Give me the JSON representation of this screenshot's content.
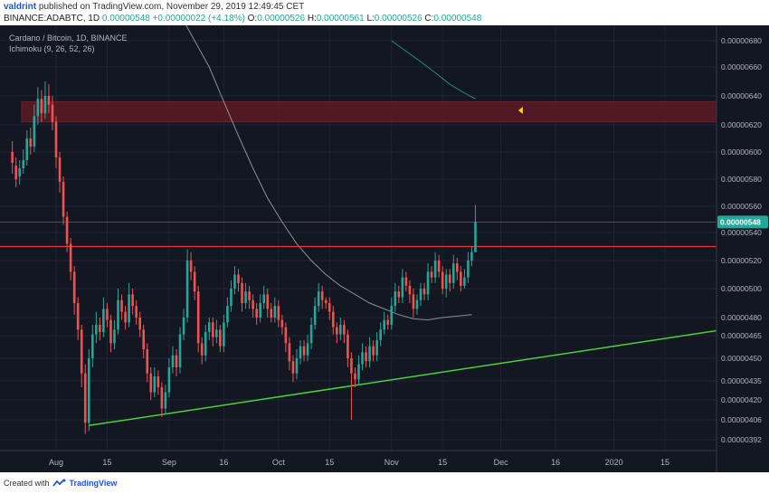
{
  "header": {
    "author": "valdrint",
    "published_text": "published on TradingView.com, November 29, 2019 12:49:45 CET",
    "symbol": "BINANCE:ADABTC, 1D",
    "last_price": "0.00000548",
    "change": "+0.00000022 (+4.18%)",
    "o_label": "O:",
    "o_value": "0.00000526",
    "h_label": "H:",
    "h_value": "0.00000561",
    "l_label": "L:",
    "l_value": "0.00000526",
    "c_label": "C:",
    "c_value": "0.00000548"
  },
  "legend": {
    "series": "Cardano / Bitcoin, 1D, BINANCE",
    "indicator": "Ichimoku (9, 26, 52, 26)"
  },
  "footer": {
    "created_with": "Created with",
    "brand": "TradingView"
  },
  "colors": {
    "background": "#131722",
    "up": "#26a69a",
    "down": "#ef5350",
    "support_line": "#4cd137",
    "resistance_line": "#e53935",
    "resistance_zone": "#5c1a22",
    "ma_curve": "#b2b5be",
    "teal_curve": "#1f8a82",
    "marker": "#ffd600"
  },
  "chart_data": {
    "type": "candlestick",
    "x_tick_labels": [
      "Aug",
      "15",
      "Sep",
      "16",
      "Oct",
      "15",
      "Nov",
      "15",
      "Dec",
      "16",
      "2020",
      "15"
    ],
    "y_tick_labels": [
      "0.00000680",
      "0.00000660",
      "0.00000640",
      "0.00000620",
      "0.00000600",
      "0.00000580",
      "0.00000560",
      "0.00000540",
      "0.00000520",
      "0.00000500",
      "0.00000480",
      "0.00000465",
      "0.00000450",
      "0.00000435",
      "0.00000420",
      "0.00000406",
      "0.00000392"
    ],
    "ticks": [
      680,
      660,
      640,
      620,
      600,
      580,
      560,
      540,
      520,
      500,
      480,
      465,
      450,
      435,
      420,
      406,
      392
    ],
    "price_unit_note": "values x 1e-8 BTC",
    "current_price_label": "0.00000548",
    "current_price": 548,
    "x_ticks": [
      {
        "day": 0,
        "label": "Aug"
      },
      {
        "day": 14,
        "label": "15"
      },
      {
        "day": 31,
        "label": "Sep"
      },
      {
        "day": 46,
        "label": "16"
      },
      {
        "day": 61,
        "label": "Oct"
      },
      {
        "day": 75,
        "label": "15"
      },
      {
        "day": 92,
        "label": "Nov"
      },
      {
        "day": 106,
        "label": "15"
      },
      {
        "day": 122,
        "label": "Dec"
      },
      {
        "day": 137,
        "label": "16"
      },
      {
        "day": 153,
        "label": "2020"
      },
      {
        "day": 167,
        "label": "15"
      }
    ],
    "candles": [
      [
        -12,
        600,
        592,
        608,
        584
      ],
      [
        -11,
        590,
        580,
        596,
        574
      ],
      [
        -10,
        582,
        588,
        594,
        576
      ],
      [
        -9,
        588,
        594,
        602,
        584
      ],
      [
        -8,
        594,
        610,
        616,
        590
      ],
      [
        -7,
        610,
        604,
        618,
        598
      ],
      [
        -6,
        604,
        626,
        634,
        600
      ],
      [
        -5,
        626,
        638,
        646,
        620
      ],
      [
        -4,
        638,
        628,
        644,
        622
      ],
      [
        -3,
        628,
        640,
        650,
        624
      ],
      [
        -2,
        640,
        634,
        648,
        628
      ],
      [
        -1,
        634,
        622,
        640,
        616
      ],
      [
        0,
        622,
        596,
        626,
        588
      ],
      [
        1,
        596,
        578,
        600,
        570
      ],
      [
        2,
        578,
        552,
        582,
        546
      ],
      [
        3,
        552,
        532,
        556,
        526
      ],
      [
        4,
        532,
        512,
        536,
        506
      ],
      [
        5,
        512,
        490,
        516,
        482
      ],
      [
        6,
        490,
        470,
        494,
        462
      ],
      [
        7,
        470,
        440,
        474,
        430
      ],
      [
        8,
        440,
        404,
        446,
        396
      ],
      [
        9,
        404,
        450,
        456,
        398
      ],
      [
        10,
        450,
        466,
        474,
        444
      ],
      [
        11,
        466,
        474,
        484,
        460
      ],
      [
        12,
        474,
        468,
        480,
        462
      ],
      [
        13,
        468,
        486,
        494,
        464
      ],
      [
        14,
        486,
        478,
        490,
        472
      ],
      [
        15,
        478,
        460,
        482,
        454
      ],
      [
        16,
        460,
        470,
        478,
        456
      ],
      [
        17,
        470,
        492,
        500,
        466
      ],
      [
        18,
        492,
        484,
        496,
        478
      ],
      [
        19,
        484,
        476,
        488,
        470
      ],
      [
        20,
        476,
        496,
        504,
        472
      ],
      [
        21,
        496,
        488,
        500,
        482
      ],
      [
        22,
        488,
        480,
        492,
        474
      ],
      [
        23,
        480,
        470,
        484,
        464
      ],
      [
        24,
        470,
        456,
        474,
        450
      ],
      [
        25,
        456,
        440,
        460,
        434
      ],
      [
        26,
        440,
        426,
        444,
        420
      ],
      [
        27,
        426,
        438,
        444,
        422
      ],
      [
        28,
        438,
        430,
        442,
        424
      ],
      [
        29,
        430,
        414,
        434,
        408
      ],
      [
        30,
        414,
        426,
        432,
        410
      ],
      [
        31,
        426,
        444,
        450,
        422
      ],
      [
        32,
        444,
        452,
        458,
        440
      ],
      [
        33,
        452,
        444,
        456,
        438
      ],
      [
        34,
        444,
        466,
        472,
        440
      ],
      [
        35,
        466,
        480,
        486,
        462
      ],
      [
        36,
        480,
        520,
        528,
        476
      ],
      [
        37,
        520,
        512,
        526,
        506
      ],
      [
        38,
        512,
        498,
        516,
        492
      ],
      [
        39,
        498,
        460,
        502,
        454
      ],
      [
        40,
        460,
        452,
        464,
        446
      ],
      [
        41,
        452,
        468,
        474,
        448
      ],
      [
        42,
        468,
        476,
        480,
        462
      ],
      [
        43,
        476,
        464,
        480,
        458
      ],
      [
        44,
        464,
        470,
        478,
        460
      ],
      [
        45,
        470,
        458,
        474,
        454
      ],
      [
        46,
        458,
        476,
        482,
        454
      ],
      [
        47,
        476,
        488,
        494,
        472
      ],
      [
        48,
        488,
        500,
        506,
        484
      ],
      [
        49,
        500,
        510,
        516,
        496
      ],
      [
        50,
        510,
        504,
        514,
        498
      ],
      [
        51,
        504,
        490,
        508,
        484
      ],
      [
        52,
        490,
        498,
        504,
        486
      ],
      [
        53,
        498,
        492,
        502,
        486
      ],
      [
        54,
        492,
        486,
        496,
        480
      ],
      [
        55,
        486,
        480,
        490,
        474
      ],
      [
        56,
        480,
        490,
        496,
        476
      ],
      [
        57,
        490,
        496,
        502,
        486
      ],
      [
        58,
        496,
        486,
        500,
        480
      ],
      [
        59,
        486,
        480,
        490,
        476
      ],
      [
        60,
        480,
        488,
        494,
        476
      ],
      [
        61,
        488,
        478,
        492,
        472
      ],
      [
        62,
        478,
        472,
        482,
        466
      ],
      [
        63,
        472,
        460,
        476,
        454
      ],
      [
        64,
        460,
        448,
        464,
        442
      ],
      [
        65,
        448,
        440,
        452,
        434
      ],
      [
        66,
        440,
        450,
        456,
        436
      ],
      [
        67,
        450,
        458,
        462,
        446
      ],
      [
        68,
        458,
        452,
        462,
        448
      ],
      [
        69,
        452,
        460,
        466,
        448
      ],
      [
        70,
        460,
        474,
        480,
        456
      ],
      [
        71,
        474,
        488,
        494,
        470
      ],
      [
        72,
        488,
        498,
        504,
        484
      ],
      [
        73,
        498,
        492,
        502,
        486
      ],
      [
        74,
        492,
        490,
        494,
        486
      ],
      [
        75,
        490,
        484,
        494,
        478
      ],
      [
        76,
        484,
        472,
        488,
        466
      ],
      [
        77,
        472,
        466,
        476,
        460
      ],
      [
        78,
        466,
        474,
        480,
        462
      ],
      [
        79,
        474,
        466,
        478,
        460
      ],
      [
        80,
        466,
        450,
        470,
        444
      ],
      [
        81,
        450,
        440,
        454,
        406
      ],
      [
        82,
        440,
        436,
        444,
        430
      ],
      [
        83,
        436,
        446,
        452,
        432
      ],
      [
        84,
        446,
        454,
        460,
        442
      ],
      [
        85,
        454,
        448,
        458,
        444
      ],
      [
        86,
        448,
        458,
        464,
        444
      ],
      [
        87,
        458,
        452,
        462,
        448
      ],
      [
        88,
        452,
        462,
        468,
        448
      ],
      [
        89,
        462,
        470,
        476,
        458
      ],
      [
        90,
        470,
        478,
        484,
        466
      ],
      [
        91,
        478,
        474,
        482,
        470
      ],
      [
        92,
        474,
        488,
        494,
        470
      ],
      [
        93,
        488,
        498,
        504,
        484
      ],
      [
        94,
        498,
        494,
        502,
        490
      ],
      [
        95,
        494,
        508,
        514,
        490
      ],
      [
        96,
        508,
        502,
        512,
        498
      ],
      [
        97,
        502,
        496,
        506,
        490
      ],
      [
        98,
        496,
        486,
        500,
        480
      ],
      [
        99,
        486,
        492,
        496,
        482
      ],
      [
        100,
        492,
        500,
        504,
        488
      ],
      [
        101,
        500,
        496,
        504,
        492
      ],
      [
        102,
        496,
        512,
        518,
        492
      ],
      [
        103,
        512,
        508,
        516,
        504
      ],
      [
        104,
        508,
        520,
        526,
        504
      ],
      [
        105,
        520,
        512,
        524,
        508
      ],
      [
        106,
        512,
        500,
        516,
        496
      ],
      [
        107,
        500,
        510,
        514,
        494
      ],
      [
        108,
        510,
        504,
        514,
        498
      ],
      [
        109,
        504,
        518,
        524,
        500
      ],
      [
        110,
        518,
        512,
        522,
        506
      ],
      [
        111,
        512,
        502,
        516,
        498
      ],
      [
        112,
        502,
        508,
        514,
        500
      ],
      [
        113,
        508,
        520,
        526,
        504
      ],
      [
        114,
        520,
        526,
        530,
        516
      ],
      [
        115,
        526,
        548,
        561,
        526
      ]
    ],
    "ma_curve": [
      [
        34,
        700
      ],
      [
        38,
        680
      ],
      [
        42,
        660
      ],
      [
        46,
        636
      ],
      [
        50,
        612
      ],
      [
        54,
        588
      ],
      [
        58,
        566
      ],
      [
        62,
        548
      ],
      [
        66,
        532
      ],
      [
        70,
        520
      ],
      [
        74,
        510
      ],
      [
        78,
        502
      ],
      [
        82,
        496
      ],
      [
        86,
        490
      ],
      [
        90,
        486
      ],
      [
        94,
        482
      ],
      [
        98,
        479
      ],
      [
        102,
        478
      ],
      [
        106,
        480
      ],
      [
        110,
        481
      ],
      [
        114,
        482
      ]
    ],
    "teal_curve": [
      [
        92,
        680
      ],
      [
        96,
        672
      ],
      [
        100,
        664
      ],
      [
        104,
        656
      ],
      [
        108,
        648
      ],
      [
        112,
        642
      ],
      [
        115,
        638
      ]
    ],
    "support_line": [
      [
        9,
        402
      ],
      [
        205,
        480
      ]
    ],
    "resistance_line_price": 530,
    "resistance_zone": [
      622,
      636
    ],
    "ylim": [
      386,
      690
    ]
  }
}
